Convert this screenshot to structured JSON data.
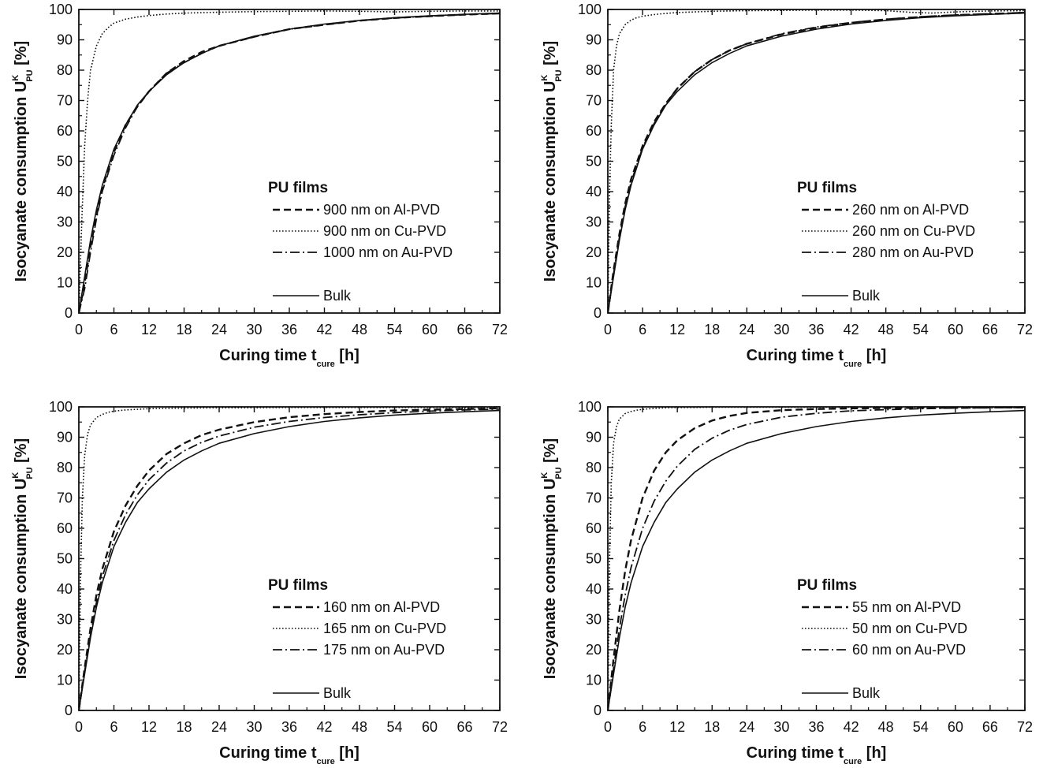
{
  "chart_data": [
    {
      "type": "line",
      "panel": "top-left",
      "xlabel": {
        "main": "Curing time t",
        "sub": "cure",
        "unit": " [h]"
      },
      "ylabel": {
        "main": "Isocyanate consumption U",
        "sup": "K",
        "sub": "PU",
        "unit": " [%]"
      },
      "xlim": [
        0,
        72
      ],
      "ylim": [
        0,
        100
      ],
      "xticks": [
        0,
        6,
        12,
        18,
        24,
        30,
        36,
        42,
        48,
        54,
        60,
        66,
        72
      ],
      "yticks": [
        0,
        10,
        20,
        30,
        40,
        50,
        60,
        70,
        80,
        90,
        100
      ],
      "legend_title": "PU films",
      "legend_placement": "center-right",
      "series": [
        {
          "name": "900 nm on Al-PVD",
          "style": "dashed",
          "x": [
            0,
            1,
            2,
            3,
            4,
            6,
            8,
            10,
            12,
            15,
            18,
            21,
            24,
            30,
            36,
            42,
            48,
            54,
            60,
            66,
            72
          ],
          "y": [
            0,
            10,
            22,
            32,
            41,
            53,
            62,
            68,
            73,
            79,
            83,
            86,
            88,
            91,
            93.5,
            95,
            96.3,
            97.2,
            97.8,
            98.3,
            98.7
          ]
        },
        {
          "name": "900 nm on Cu-PVD",
          "style": "dotted",
          "x": [
            0,
            0.5,
            1,
            1.5,
            2,
            3,
            4,
            5,
            6,
            8,
            10,
            12,
            15,
            18,
            24,
            30,
            36,
            42,
            48,
            54,
            60,
            66,
            72
          ],
          "y": [
            0,
            30,
            55,
            70,
            80,
            88,
            92,
            94,
            95.5,
            96.8,
            97.5,
            98,
            98.5,
            98.8,
            99.1,
            99.3,
            99.4,
            99.5,
            99.4,
            99.2,
            99.4,
            99.5,
            99.5
          ]
        },
        {
          "name": "1000 nm on Au-PVD",
          "style": "dashdot",
          "x": [
            0,
            1,
            2,
            3,
            4,
            6,
            8,
            10,
            12,
            15,
            18,
            21,
            24,
            30,
            36,
            42,
            48,
            54,
            60,
            66,
            72
          ],
          "y": [
            0,
            8,
            20,
            31,
            40,
            52,
            61,
            68,
            73,
            79,
            82.5,
            85.5,
            88,
            91,
            93.5,
            95,
            96.3,
            97.2,
            97.8,
            98.3,
            98.7
          ]
        },
        {
          "name": "Bulk",
          "style": "solid",
          "x": [
            0,
            1,
            2,
            3,
            4,
            6,
            8,
            10,
            12,
            15,
            18,
            21,
            24,
            30,
            36,
            42,
            48,
            54,
            60,
            66,
            72
          ],
          "y": [
            0,
            12,
            24,
            34,
            42,
            54,
            62,
            68.5,
            73,
            78.5,
            82.5,
            85.5,
            88,
            91.2,
            93.5,
            95.2,
            96.4,
            97.3,
            97.9,
            98.4,
            98.8
          ]
        }
      ]
    },
    {
      "type": "line",
      "panel": "top-right",
      "xlabel": {
        "main": "Curing time t",
        "sub": "cure",
        "unit": " [h]"
      },
      "ylabel": {
        "main": "Isocyanate consumption U",
        "sup": "K",
        "sub": "PU",
        "unit": " [%]"
      },
      "xlim": [
        0,
        72
      ],
      "ylim": [
        0,
        100
      ],
      "xticks": [
        0,
        6,
        12,
        18,
        24,
        30,
        36,
        42,
        48,
        54,
        60,
        66,
        72
      ],
      "yticks": [
        0,
        10,
        20,
        30,
        40,
        50,
        60,
        70,
        80,
        90,
        100
      ],
      "legend_title": "PU films",
      "legend_placement": "center-right",
      "series": [
        {
          "name": "260 nm on Al-PVD",
          "style": "dashed",
          "x": [
            0,
            1,
            2,
            3,
            4,
            6,
            8,
            10,
            12,
            15,
            18,
            21,
            24,
            30,
            36,
            42,
            48,
            54,
            60,
            66,
            72
          ],
          "y": [
            0,
            14,
            26,
            36,
            44,
            55,
            63,
            69,
            74,
            79.5,
            83.5,
            86.5,
            88.7,
            91.8,
            94,
            95.6,
            96.7,
            97.5,
            98.1,
            98.5,
            98.9
          ]
        },
        {
          "name": "260 nm on Cu-PVD",
          "style": "dotted",
          "x": [
            0,
            0.3,
            0.6,
            1,
            1.5,
            2,
            3,
            4,
            5,
            6,
            8,
            10,
            12,
            15,
            18,
            24,
            30,
            36,
            42,
            48,
            52,
            56,
            60,
            66,
            72
          ],
          "y": [
            0,
            40,
            62,
            80,
            88,
            92,
            95,
            96.5,
            97.3,
            97.8,
            98.3,
            98.7,
            99,
            99.2,
            99.4,
            99.6,
            99.7,
            99.8,
            99.8,
            99.6,
            99.1,
            98.8,
            99.2,
            99.5,
            99.6
          ]
        },
        {
          "name": "280 nm on Au-PVD",
          "style": "dashdot",
          "x": [
            0,
            1,
            2,
            3,
            4,
            6,
            8,
            10,
            12,
            15,
            18,
            21,
            24,
            30,
            36,
            42,
            48,
            54,
            60,
            66,
            72
          ],
          "y": [
            0,
            13,
            25,
            35,
            43,
            54.5,
            62.5,
            69,
            74,
            79.5,
            83.5,
            86.5,
            88.7,
            92,
            94.2,
            95.7,
            96.8,
            97.6,
            98.2,
            98.6,
            99
          ]
        },
        {
          "name": "Bulk",
          "style": "solid",
          "x": [
            0,
            1,
            2,
            3,
            4,
            6,
            8,
            10,
            12,
            15,
            18,
            21,
            24,
            30,
            36,
            42,
            48,
            54,
            60,
            66,
            72
          ],
          "y": [
            0,
            12,
            24,
            34,
            42,
            54,
            62,
            68.5,
            73,
            78.5,
            82.5,
            85.5,
            88,
            91.2,
            93.5,
            95.2,
            96.4,
            97.3,
            97.9,
            98.4,
            98.8
          ]
        }
      ]
    },
    {
      "type": "line",
      "panel": "bottom-left",
      "xlabel": {
        "main": "Curing time t",
        "sub": "cure",
        "unit": " [h]"
      },
      "ylabel": {
        "main": "Isocyanate consumption U",
        "sup": "K",
        "sub": "PU",
        "unit": " [%]"
      },
      "xlim": [
        0,
        72
      ],
      "ylim": [
        0,
        100
      ],
      "xticks": [
        0,
        6,
        12,
        18,
        24,
        30,
        36,
        42,
        48,
        54,
        60,
        66,
        72
      ],
      "yticks": [
        0,
        10,
        20,
        30,
        40,
        50,
        60,
        70,
        80,
        90,
        100
      ],
      "legend_title": "PU films",
      "legend_placement": "center-right",
      "series": [
        {
          "name": "160 nm on Al-PVD",
          "style": "dashed",
          "x": [
            0,
            1,
            2,
            3,
            4,
            6,
            8,
            10,
            12,
            15,
            18,
            21,
            24,
            30,
            36,
            42,
            48,
            54,
            60,
            66,
            72
          ],
          "y": [
            0,
            14,
            27,
            38,
            46.5,
            59,
            67.5,
            74,
            79,
            84.5,
            88,
            90.7,
            92.5,
            95,
            96.6,
            97.6,
            98.3,
            98.8,
            99.1,
            99.3,
            99.5
          ]
        },
        {
          "name": "165 nm on Cu-PVD",
          "style": "dotted",
          "x": [
            0,
            0.3,
            0.6,
            1,
            1.5,
            2,
            3,
            4,
            5,
            6,
            8,
            10,
            12,
            15,
            18,
            24,
            30,
            36,
            42,
            48,
            54,
            60,
            66,
            72
          ],
          "y": [
            0,
            45,
            70,
            84,
            91,
            94,
            96.5,
            97.5,
            98.2,
            98.6,
            99,
            99.2,
            99.4,
            99.5,
            99.6,
            99.7,
            99.7,
            99.8,
            99.8,
            99.8,
            99.8,
            99.8,
            99.8,
            99.8
          ]
        },
        {
          "name": "175 nm on Au-PVD",
          "style": "dashdot",
          "x": [
            0,
            1,
            2,
            3,
            4,
            6,
            8,
            10,
            12,
            15,
            18,
            21,
            24,
            30,
            36,
            42,
            48,
            54,
            60,
            66,
            72
          ],
          "y": [
            0,
            13,
            25,
            35.5,
            44,
            56,
            64.5,
            71,
            76,
            81.5,
            85.5,
            88.3,
            90.4,
            93.3,
            95.2,
            96.5,
            97.4,
            98.1,
            98.6,
            99,
            99.3
          ]
        },
        {
          "name": "Bulk",
          "style": "solid",
          "x": [
            0,
            1,
            2,
            3,
            4,
            6,
            8,
            10,
            12,
            15,
            18,
            21,
            24,
            30,
            36,
            42,
            48,
            54,
            60,
            66,
            72
          ],
          "y": [
            0,
            12,
            24,
            34,
            42,
            54,
            62,
            68.5,
            73,
            78.5,
            82.5,
            85.5,
            88,
            91.2,
            93.5,
            95.2,
            96.4,
            97.3,
            97.9,
            98.4,
            98.8
          ]
        }
      ]
    },
    {
      "type": "line",
      "panel": "bottom-right",
      "xlabel": {
        "main": "Curing time t",
        "sub": "cure",
        "unit": " [h]"
      },
      "ylabel": {
        "main": "Isocyanate consumption U",
        "sup": "K",
        "sub": "PU",
        "unit": " [%]"
      },
      "xlim": [
        0,
        72
      ],
      "ylim": [
        0,
        100
      ],
      "xticks": [
        0,
        6,
        12,
        18,
        24,
        30,
        36,
        42,
        48,
        54,
        60,
        66,
        72
      ],
      "yticks": [
        0,
        10,
        20,
        30,
        40,
        50,
        60,
        70,
        80,
        90,
        100
      ],
      "legend_title": "PU films",
      "legend_placement": "center-right",
      "series": [
        {
          "name": "55 nm on Al-PVD",
          "style": "dashed",
          "x": [
            0,
            1,
            2,
            3,
            4,
            6,
            8,
            10,
            12,
            15,
            18,
            21,
            24,
            30,
            36,
            42,
            48,
            54,
            60,
            66,
            72
          ],
          "y": [
            0,
            17,
            33,
            46,
            56,
            70,
            79,
            85,
            89,
            93,
            95.5,
            97,
            98,
            98.9,
            99.3,
            99.5,
            99.6,
            99.7,
            99.7,
            99.8,
            99.8
          ]
        },
        {
          "name": "50 nm on Cu-PVD",
          "style": "dotted",
          "x": [
            0,
            0.3,
            0.6,
            1,
            1.5,
            2,
            3,
            4,
            5,
            6,
            8,
            10,
            12,
            15,
            18,
            24,
            30,
            36,
            42,
            48,
            54,
            60,
            66,
            72
          ],
          "y": [
            0,
            50,
            75,
            88,
            93.5,
            96,
            97.8,
            98.5,
            98.9,
            99.2,
            99.5,
            99.7,
            99.8,
            99.8,
            99.9,
            99.9,
            99.9,
            99.9,
            99.9,
            99.9,
            99.9,
            99.9,
            99.9,
            99.9
          ]
        },
        {
          "name": "60 nm on Au-PVD",
          "style": "dashdot",
          "x": [
            0,
            1,
            2,
            3,
            4,
            6,
            8,
            10,
            12,
            15,
            18,
            21,
            24,
            30,
            36,
            42,
            48,
            54,
            60,
            66,
            72
          ],
          "y": [
            0,
            14,
            27,
            38,
            47,
            60,
            69,
            75.5,
            80.5,
            86,
            89.7,
            92.3,
            94.2,
            96.6,
            97.9,
            98.7,
            99.1,
            99.4,
            99.6,
            99.7,
            99.8
          ]
        },
        {
          "name": "Bulk",
          "style": "solid",
          "x": [
            0,
            1,
            2,
            3,
            4,
            6,
            8,
            10,
            12,
            15,
            18,
            21,
            24,
            30,
            36,
            42,
            48,
            54,
            60,
            66,
            72
          ],
          "y": [
            0,
            12,
            24,
            34,
            42,
            54,
            62,
            68.5,
            73,
            78.5,
            82.5,
            85.5,
            88,
            91.2,
            93.5,
            95.2,
            96.4,
            97.3,
            97.9,
            98.4,
            98.8
          ]
        }
      ]
    }
  ]
}
